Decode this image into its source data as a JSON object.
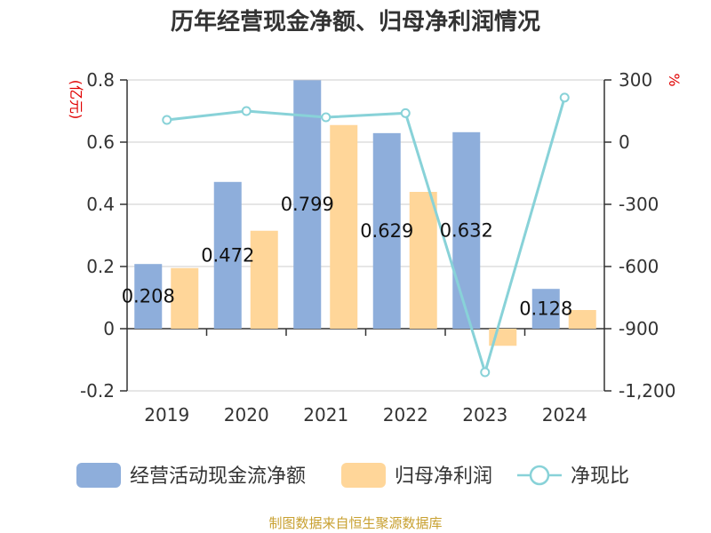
{
  "title": "历年经营现金净额、归母净利润情况",
  "source": "制图数据来自恒生聚源数据库",
  "chart_data": {
    "type": "bar",
    "categories": [
      "2019",
      "2020",
      "2021",
      "2022",
      "2023",
      "2024"
    ],
    "series": [
      {
        "name": "经营活动现金流净额",
        "type": "bar",
        "axis": "left",
        "color": "#8eaedb",
        "values": [
          0.208,
          0.472,
          0.799,
          0.629,
          0.632,
          0.128
        ]
      },
      {
        "name": "归母净利润",
        "type": "bar",
        "axis": "left",
        "color": "#ffd699",
        "values": [
          0.195,
          0.315,
          0.655,
          0.44,
          -0.055,
          0.06
        ]
      },
      {
        "name": "净现比",
        "type": "line",
        "axis": "right",
        "color": "#88d2d8",
        "values": [
          107,
          150,
          120,
          140,
          -1110,
          215
        ]
      }
    ],
    "data_labels": [
      "0.208",
      "0.472",
      "0.799",
      "0.629",
      "0.632",
      "0.128"
    ],
    "y_left": {
      "label": "(亿元)",
      "ylim": [
        -0.2,
        0.8
      ],
      "ticks": [
        "-0.2",
        "0",
        "0.2",
        "0.4",
        "0.6",
        "0.8"
      ]
    },
    "y_right": {
      "label": "%",
      "ylim": [
        -1200,
        300
      ],
      "ticks": [
        "-1,200",
        "-900",
        "-600",
        "-300",
        "0",
        "300"
      ]
    },
    "grid": true,
    "legend_position": "bottom"
  }
}
